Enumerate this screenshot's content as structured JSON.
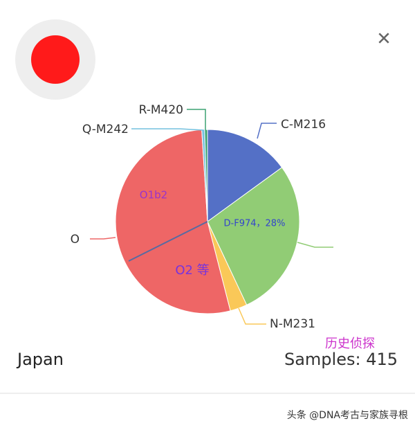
{
  "close": "✕",
  "chart_data": {
    "type": "pie",
    "categories": [
      "C-M216",
      "D-F974，28%",
      "N-M231",
      "O",
      "Q-M242",
      "R-M420"
    ],
    "values": [
      15,
      28,
      3,
      53,
      0.5,
      0.5
    ],
    "colors": [
      "#5470c6",
      "#91cc75",
      "#fac858",
      "#ee6666",
      "#73c0de",
      "#3ba272"
    ],
    "annotations": [
      "O1b2",
      "O2 等"
    ]
  },
  "country": "Japan",
  "samples": "Samples: 415",
  "stamp": "历史侦探",
  "footer": "头条 @DNA考古与家族寻根"
}
